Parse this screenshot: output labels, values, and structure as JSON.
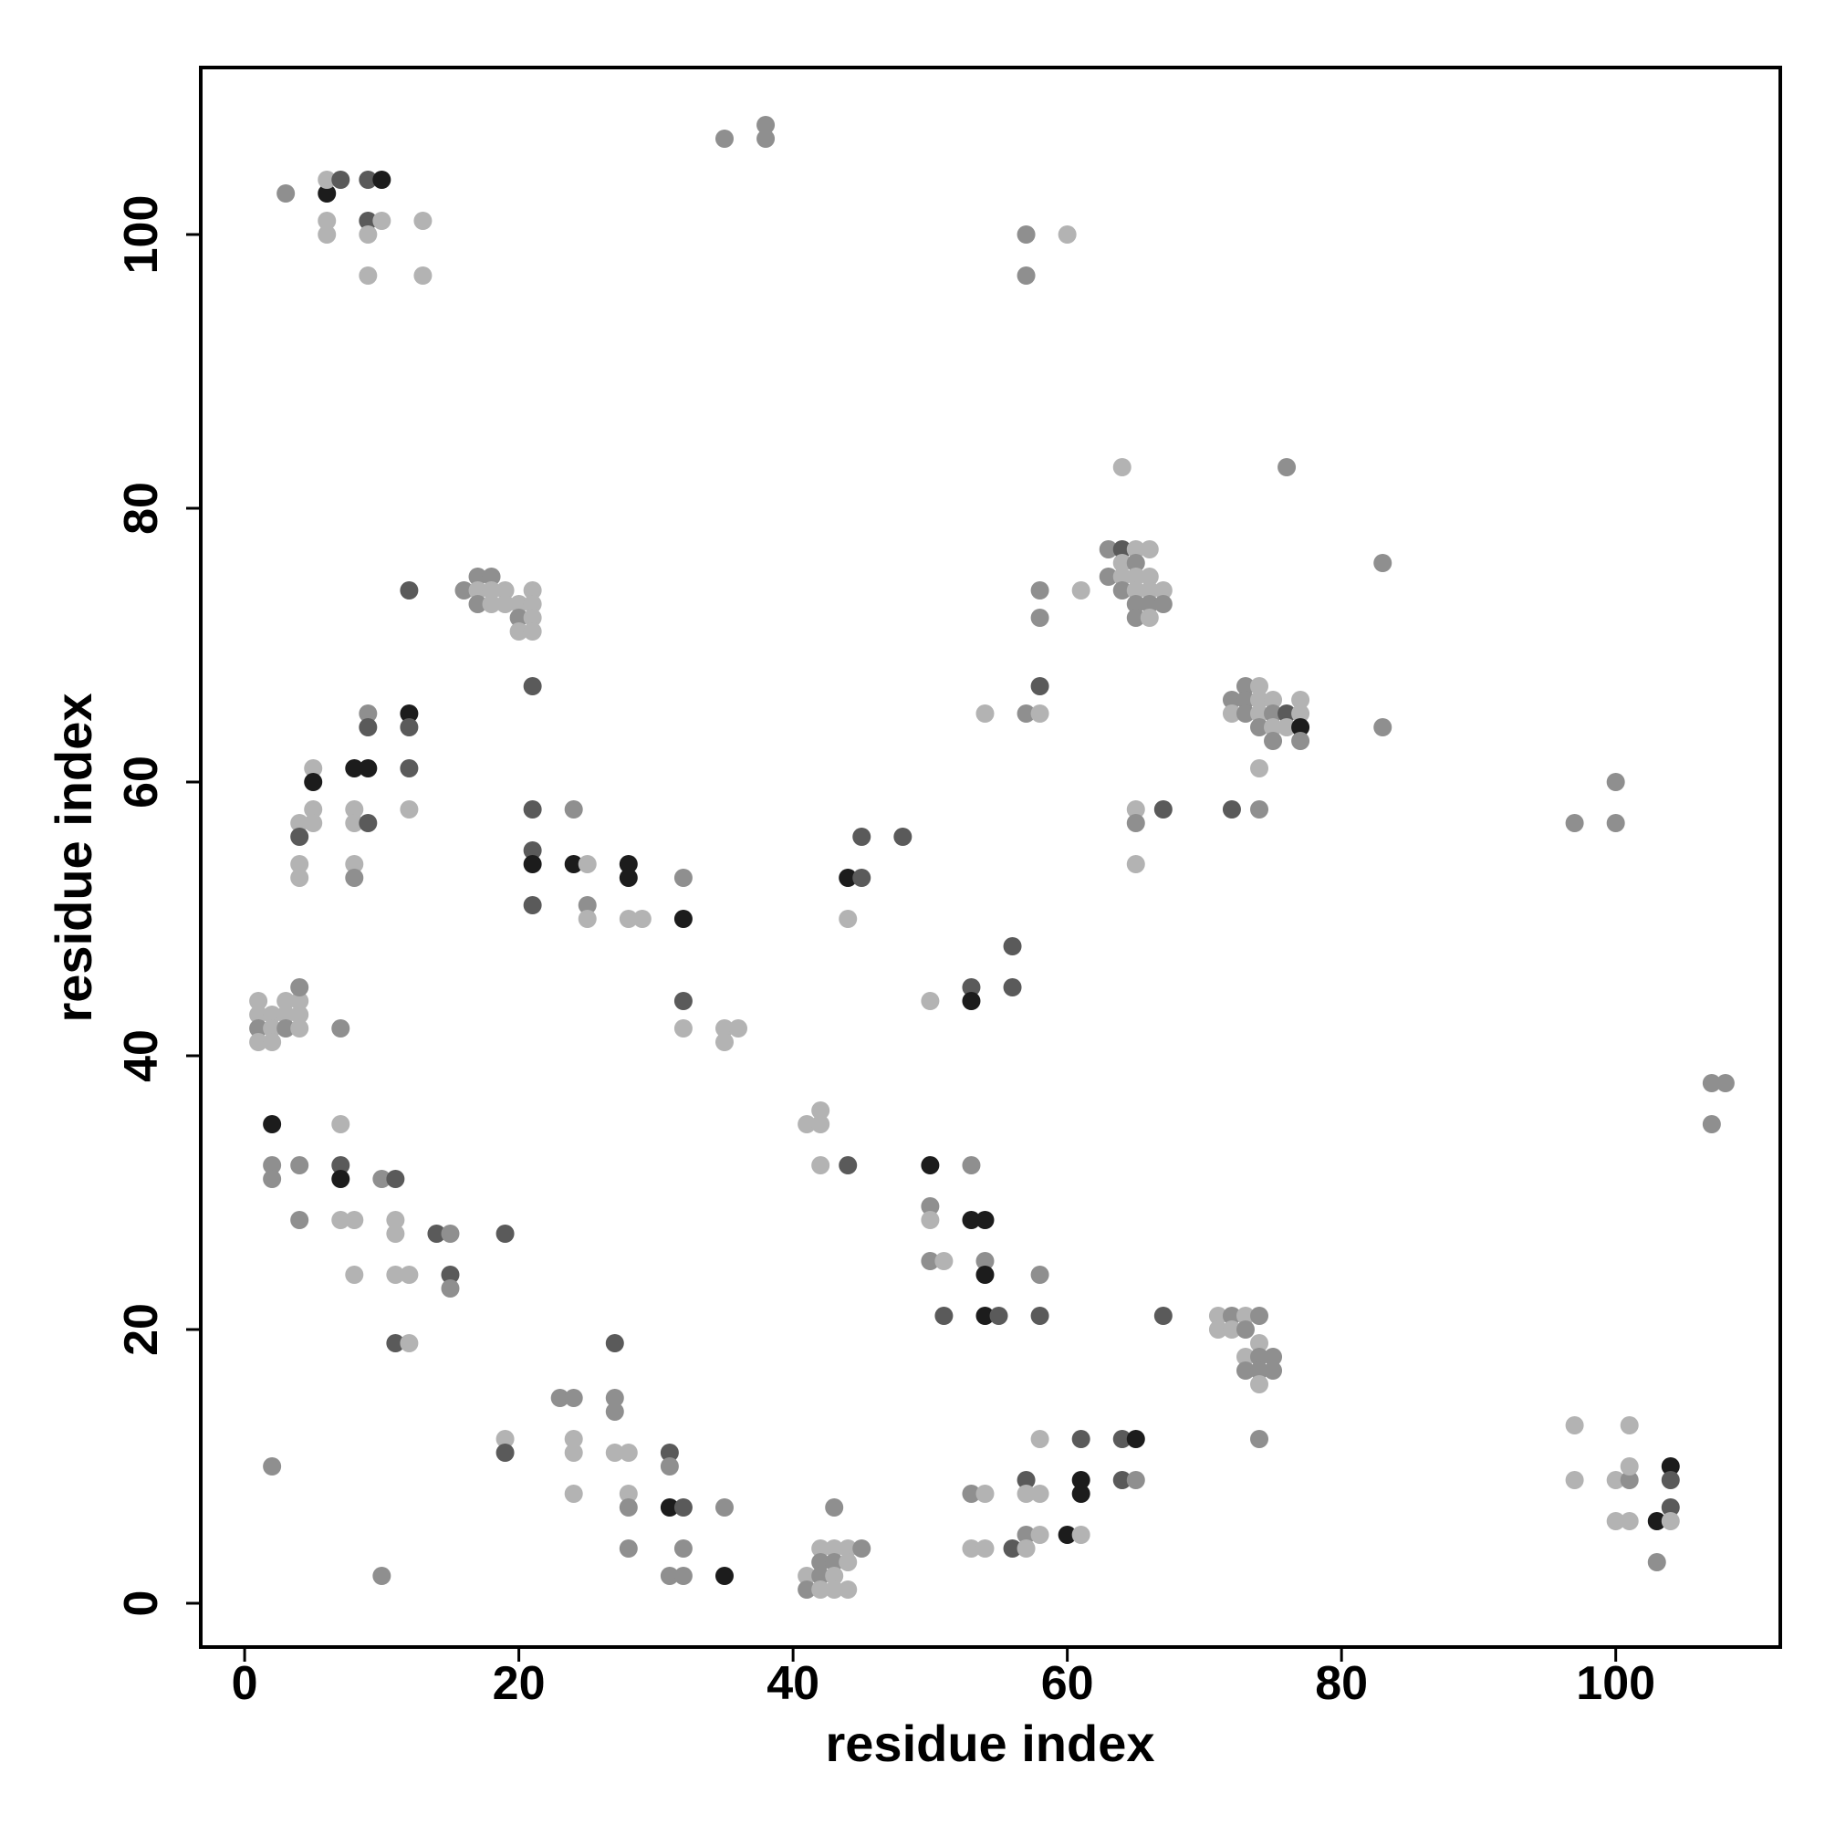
{
  "chart_data": {
    "type": "scatter",
    "x_label": "residue index",
    "y_label": "residue index",
    "xlim": [
      -3.2,
      112
    ],
    "ylim": [
      -3.2,
      112.2
    ],
    "xticks": [
      0,
      20,
      40,
      60,
      80,
      100
    ],
    "yticks": [
      0,
      20,
      40,
      60,
      80,
      100
    ],
    "x": [
      3,
      6,
      6,
      7,
      9,
      10,
      6,
      6,
      9,
      10,
      9,
      9,
      13,
      13,
      35,
      38,
      38,
      57,
      60,
      57,
      64,
      76,
      63,
      64,
      65,
      66,
      63,
      64,
      65,
      64,
      65,
      66,
      64,
      65,
      66,
      67,
      65,
      66,
      67,
      65,
      66,
      58,
      61,
      58,
      83,
      16,
      17,
      18,
      17,
      18,
      19,
      17,
      18,
      19,
      20,
      21,
      20,
      21,
      21,
      20,
      21,
      12,
      21,
      58,
      54,
      57,
      58,
      73,
      74,
      72,
      73,
      74,
      75,
      77,
      72,
      73,
      74,
      75,
      76,
      77,
      74,
      75,
      76,
      77,
      75,
      77,
      74,
      72,
      74,
      83,
      65,
      67,
      65,
      65,
      9,
      12,
      9,
      12,
      5,
      8,
      9,
      12,
      5,
      5,
      8,
      12,
      4,
      5,
      8,
      9,
      4,
      4,
      8,
      4,
      8,
      21,
      24,
      21,
      21,
      24,
      25,
      28,
      28,
      32,
      21,
      25,
      25,
      28,
      29,
      32,
      45,
      48,
      44,
      45,
      44,
      97,
      100,
      100,
      56,
      53,
      56,
      53,
      50,
      32,
      32,
      35,
      36,
      35,
      1,
      3,
      4,
      4,
      1,
      2,
      3,
      4,
      1,
      2,
      3,
      4,
      1,
      2,
      7,
      107,
      108,
      107,
      2,
      7,
      2,
      4,
      7,
      2,
      7,
      10,
      11,
      4,
      7,
      8,
      11,
      11,
      14,
      15,
      19,
      8,
      11,
      12,
      15,
      15,
      11,
      12,
      41,
      42,
      42,
      42,
      44,
      50,
      53,
      50,
      50,
      53,
      54,
      50,
      51,
      54,
      54,
      58,
      51,
      54,
      55,
      58,
      67,
      71,
      72,
      73,
      74,
      71,
      72,
      73,
      74,
      73,
      74,
      75,
      73,
      74,
      75,
      74,
      74,
      27,
      23,
      24,
      27,
      27,
      19,
      24,
      19,
      24,
      27,
      28,
      31,
      31,
      24,
      28,
      28,
      31,
      32,
      35,
      28,
      32,
      31,
      32,
      35,
      2,
      10,
      43,
      42,
      43,
      44,
      45,
      42,
      43,
      44,
      41,
      42,
      43,
      41,
      42,
      43,
      44,
      58,
      61,
      64,
      65,
      57,
      61,
      64,
      65,
      61,
      53,
      54,
      57,
      58,
      57,
      58,
      60,
      61,
      53,
      54,
      56,
      57,
      97,
      101,
      97,
      100,
      101,
      101,
      104,
      104,
      104,
      100,
      101,
      103,
      104,
      103
    ],
    "values": [
      103,
      103,
      104,
      104,
      104,
      104,
      101,
      100,
      101,
      101,
      100,
      97,
      101,
      97,
      107,
      108,
      107,
      100,
      100,
      97,
      83,
      83,
      77,
      77,
      77,
      77,
      75,
      76,
      76,
      75,
      75,
      75,
      74,
      74,
      74,
      74,
      73,
      73,
      73,
      72,
      72,
      74,
      74,
      72,
      76,
      74,
      75,
      75,
      74,
      74,
      74,
      73,
      73,
      73,
      73,
      74,
      72,
      73,
      72,
      71,
      71,
      74,
      67,
      67,
      65,
      65,
      65,
      67,
      67,
      66,
      66,
      66,
      66,
      66,
      65,
      65,
      65,
      65,
      65,
      65,
      64,
      64,
      64,
      64,
      63,
      63,
      61,
      58,
      58,
      64,
      58,
      58,
      57,
      54,
      65,
      65,
      64,
      64,
      61,
      61,
      61,
      61,
      60,
      58,
      58,
      58,
      57,
      57,
      57,
      57,
      56,
      54,
      54,
      53,
      53,
      58,
      58,
      55,
      54,
      54,
      54,
      54,
      53,
      53,
      51,
      51,
      50,
      50,
      50,
      50,
      56,
      56,
      53,
      53,
      50,
      57,
      60,
      57,
      48,
      45,
      45,
      44,
      44,
      44,
      42,
      42,
      42,
      41,
      44,
      44,
      44,
      45,
      43,
      43,
      43,
      43,
      42,
      42,
      42,
      42,
      41,
      41,
      42,
      38,
      38,
      35,
      35,
      35,
      32,
      32,
      32,
      31,
      31,
      31,
      31,
      28,
      28,
      28,
      28,
      27,
      27,
      27,
      27,
      24,
      24,
      24,
      24,
      23,
      19,
      19,
      35,
      36,
      35,
      32,
      32,
      32,
      32,
      29,
      28,
      28,
      28,
      25,
      25,
      25,
      24,
      24,
      21,
      21,
      21,
      21,
      21,
      21,
      21,
      21,
      21,
      20,
      20,
      20,
      19,
      18,
      18,
      18,
      17,
      17,
      17,
      16,
      12,
      19,
      15,
      15,
      15,
      14,
      12,
      12,
      11,
      11,
      11,
      11,
      11,
      10,
      8,
      8,
      7,
      7,
      7,
      7,
      4,
      4,
      2,
      2,
      2,
      10,
      2,
      7,
      4,
      4,
      4,
      4,
      3,
      3,
      3,
      2,
      2,
      2,
      1,
      1,
      1,
      1,
      12,
      12,
      12,
      12,
      9,
      9,
      9,
      9,
      8,
      8,
      8,
      8,
      8,
      5,
      5,
      5,
      5,
      4,
      4,
      4,
      4,
      13,
      13,
      9,
      9,
      9,
      10,
      10,
      9,
      7,
      6,
      6,
      6,
      6,
      3
    ],
    "colors": [
      "#8f8f8f",
      "#1c1c1c",
      "#b3b3b3",
      "#5a5a5a",
      "#5a5a5a",
      "#1c1c1c",
      "#b3b3b3",
      "#b3b3b3",
      "#5a5a5a",
      "#b3b3b3",
      "#b3b3b3",
      "#b3b3b3",
      "#b3b3b3",
      "#b3b3b3",
      "#8f8f8f",
      "#8f8f8f",
      "#8f8f8f",
      "#8f8f8f",
      "#b3b3b3",
      "#8f8f8f",
      "#b3b3b3",
      "#8f8f8f",
      "#8f8f8f",
      "#5a5a5a",
      "#b3b3b3",
      "#b3b3b3",
      "#8f8f8f",
      "#b3b3b3",
      "#8f8f8f",
      "#b3b3b3",
      "#b3b3b3",
      "#b3b3b3",
      "#8f8f8f",
      "#b3b3b3",
      "#b3b3b3",
      "#b3b3b3",
      "#8f8f8f",
      "#8f8f8f",
      "#8f8f8f",
      "#8f8f8f",
      "#b3b3b3",
      "#8f8f8f",
      "#b3b3b3",
      "#8f8f8f",
      "#8f8f8f",
      "#8f8f8f",
      "#8f8f8f",
      "#8f8f8f",
      "#b3b3b3",
      "#b3b3b3",
      "#b3b3b3",
      "#8f8f8f",
      "#b3b3b3",
      "#b3b3b3",
      "#b3b3b3",
      "#b3b3b3",
      "#8f8f8f",
      "#b3b3b3",
      "#b3b3b3",
      "#b3b3b3",
      "#b3b3b3",
      "#5a5a5a",
      "#5a5a5a",
      "#5a5a5a",
      "#b3b3b3",
      "#8f8f8f",
      "#b3b3b3",
      "#8f8f8f",
      "#b3b3b3",
      "#8f8f8f",
      "#8f8f8f",
      "#b3b3b3",
      "#b3b3b3",
      "#b3b3b3",
      "#b3b3b3",
      "#8f8f8f",
      "#b3b3b3",
      "#8f8f8f",
      "#5a5a5a",
      "#b3b3b3",
      "#8f8f8f",
      "#b3b3b3",
      "#b3b3b3",
      "#1c1c1c",
      "#8f8f8f",
      "#8f8f8f",
      "#b3b3b3",
      "#5a5a5a",
      "#8f8f8f",
      "#8f8f8f",
      "#b3b3b3",
      "#5a5a5a",
      "#8f8f8f",
      "#b3b3b3",
      "#8f8f8f",
      "#1c1c1c",
      "#5a5a5a",
      "#5a5a5a",
      "#b3b3b3",
      "#1c1c1c",
      "#1c1c1c",
      "#5a5a5a",
      "#1c1c1c",
      "#b3b3b3",
      "#b3b3b3",
      "#b3b3b3",
      "#b3b3b3",
      "#b3b3b3",
      "#b3b3b3",
      "#5a5a5a",
      "#5a5a5a",
      "#b3b3b3",
      "#b3b3b3",
      "#b3b3b3",
      "#8f8f8f",
      "#5a5a5a",
      "#8f8f8f",
      "#5a5a5a",
      "#1c1c1c",
      "#1c1c1c",
      "#b3b3b3",
      "#1c1c1c",
      "#1c1c1c",
      "#8f8f8f",
      "#5a5a5a",
      "#8f8f8f",
      "#b3b3b3",
      "#b3b3b3",
      "#b3b3b3",
      "#1c1c1c",
      "#5a5a5a",
      "#5a5a5a",
      "#1c1c1c",
      "#5a5a5a",
      "#b3b3b3",
      "#8f8f8f",
      "#8f8f8f",
      "#8f8f8f",
      "#5a5a5a",
      "#5a5a5a",
      "#5a5a5a",
      "#1c1c1c",
      "#b3b3b3",
      "#5a5a5a",
      "#b3b3b3",
      "#b3b3b3",
      "#b3b3b3",
      "#b3b3b3",
      "#b3b3b3",
      "#b3b3b3",
      "#b3b3b3",
      "#8f8f8f",
      "#b3b3b3",
      "#b3b3b3",
      "#b3b3b3",
      "#b3b3b3",
      "#8f8f8f",
      "#b3b3b3",
      "#8f8f8f",
      "#b3b3b3",
      "#b3b3b3",
      "#b3b3b3",
      "#8f8f8f",
      "#8f8f8f",
      "#8f8f8f",
      "#8f8f8f",
      "#1c1c1c",
      "#b3b3b3",
      "#8f8f8f",
      "#8f8f8f",
      "#5a5a5a",
      "#8f8f8f",
      "#1c1c1c",
      "#8f8f8f",
      "#5a5a5a",
      "#8f8f8f",
      "#b3b3b3",
      "#b3b3b3",
      "#b3b3b3",
      "#b3b3b3",
      "#5a5a5a",
      "#8f8f8f",
      "#5a5a5a",
      "#b3b3b3",
      "#b3b3b3",
      "#b3b3b3",
      "#5a5a5a",
      "#8f8f8f",
      "#5a5a5a",
      "#b3b3b3",
      "#b3b3b3",
      "#b3b3b3",
      "#b3b3b3",
      "#b3b3b3",
      "#5a5a5a",
      "#1c1c1c",
      "#8f8f8f",
      "#8f8f8f",
      "#b3b3b3",
      "#1c1c1c",
      "#1c1c1c",
      "#8f8f8f",
      "#b3b3b3",
      "#8f8f8f",
      "#1c1c1c",
      "#8f8f8f",
      "#5a5a5a",
      "#1c1c1c",
      "#5a5a5a",
      "#5a5a5a",
      "#5a5a5a",
      "#b3b3b3",
      "#8f8f8f",
      "#b3b3b3",
      "#8f8f8f",
      "#b3b3b3",
      "#b3b3b3",
      "#8f8f8f",
      "#b3b3b3",
      "#b3b3b3",
      "#8f8f8f",
      "#8f8f8f",
      "#8f8f8f",
      "#8f8f8f",
      "#8f8f8f",
      "#b3b3b3",
      "#8f8f8f",
      "#5a5a5a",
      "#8f8f8f",
      "#8f8f8f",
      "#8f8f8f",
      "#8f8f8f",
      "#b3b3b3",
      "#b3b3b3",
      "#5a5a5a",
      "#b3b3b3",
      "#b3b3b3",
      "#b3b3b3",
      "#5a5a5a",
      "#8f8f8f",
      "#b3b3b3",
      "#b3b3b3",
      "#8f8f8f",
      "#1c1c1c",
      "#5a5a5a",
      "#8f8f8f",
      "#8f8f8f",
      "#8f8f8f",
      "#8f8f8f",
      "#8f8f8f",
      "#1c1c1c",
      "#8f8f8f",
      "#8f8f8f",
      "#8f8f8f",
      "#b3b3b3",
      "#b3b3b3",
      "#b3b3b3",
      "#8f8f8f",
      "#8f8f8f",
      "#8f8f8f",
      "#b3b3b3",
      "#b3b3b3",
      "#8f8f8f",
      "#b3b3b3",
      "#8f8f8f",
      "#b3b3b3",
      "#b3b3b3",
      "#b3b3b3",
      "#b3b3b3",
      "#5a5a5a",
      "#5a5a5a",
      "#1c1c1c",
      "#5a5a5a",
      "#1c1c1c",
      "#5a5a5a",
      "#8f8f8f",
      "#1c1c1c",
      "#8f8f8f",
      "#b3b3b3",
      "#b3b3b3",
      "#b3b3b3",
      "#8f8f8f",
      "#b3b3b3",
      "#1c1c1c",
      "#b3b3b3",
      "#b3b3b3",
      "#b3b3b3",
      "#5a5a5a",
      "#b3b3b3",
      "#b3b3b3",
      "#b3b3b3",
      "#b3b3b3",
      "#b3b3b3",
      "#8f8f8f",
      "#b3b3b3",
      "#1c1c1c",
      "#5a5a5a",
      "#5a5a5a",
      "#b3b3b3",
      "#b3b3b3",
      "#1c1c1c",
      "#b3b3b3",
      "#8f8f8f"
    ]
  }
}
